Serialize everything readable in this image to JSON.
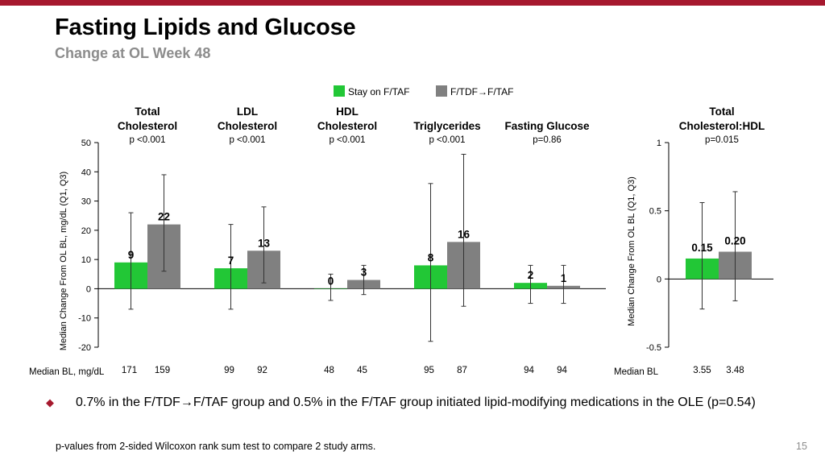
{
  "slide": {
    "title": "Fasting Lipids and Glucose",
    "subtitle": "Change at OL Week 48",
    "bullet": "0.7% in the F/TDF→F/TAF group and 0.5% in the F/TAF group initiated lipid-modifying medications in the OLE (p=0.54)",
    "footnote": "p-values from 2-sided Wilcoxon rank sum test to compare 2 study arms.",
    "page_number": "15"
  },
  "colors": {
    "accent": "#a6192e",
    "stay_on_f_taf": "#22c736",
    "f_tdf_to_f_taf": "#808080"
  },
  "chart_data": [
    {
      "type": "bar",
      "ylabel": "Median Change From OL BL, mg/dL (Q1, Q3)",
      "ylim": [
        -20,
        50
      ],
      "yticks": [
        -20,
        -10,
        0,
        10,
        20,
        30,
        40,
        50
      ],
      "legend": [
        "Stay on F/TAF",
        "F/TDF→F/TAF"
      ],
      "legend_position": "top",
      "baseline_row_label": "Median BL, mg/dL",
      "categories": [
        {
          "name_lines": [
            "Total",
            "Cholesterol"
          ],
          "p_value": "p <0.001"
        },
        {
          "name_lines": [
            "LDL",
            "Cholesterol"
          ],
          "p_value": "p <0.001"
        },
        {
          "name_lines": [
            "HDL",
            "Cholesterol"
          ],
          "p_value": "p <0.001"
        },
        {
          "name_lines": [
            "Triglycerides"
          ],
          "p_value": "p <0.001"
        },
        {
          "name_lines": [
            "Fasting Glucose"
          ],
          "p_value": "p=0.86"
        }
      ],
      "series": [
        {
          "name": "Stay on F/TAF",
          "values": [
            9,
            7,
            0,
            8,
            2
          ],
          "q1": [
            -7,
            -7,
            -4,
            -18,
            -5
          ],
          "q3": [
            26,
            22,
            5,
            36,
            8
          ],
          "median_bl": [
            "171",
            "99",
            "48",
            "95",
            "94"
          ]
        },
        {
          "name": "F/TDF→F/TAF",
          "values": [
            22,
            13,
            3,
            16,
            1
          ],
          "q1": [
            6,
            2,
            -2,
            -6,
            -5
          ],
          "q3": [
            39,
            28,
            8,
            46,
            8
          ],
          "median_bl": [
            "159",
            "92",
            "45",
            "87",
            "94"
          ]
        }
      ]
    },
    {
      "type": "bar",
      "ylabel": "Median Change From OL BL (Q1, Q3)",
      "ylim": [
        -0.5,
        1
      ],
      "yticks": [
        "-0.5",
        "0",
        "0.5",
        "1"
      ],
      "baseline_row_label": "Median BL",
      "categories": [
        {
          "name_lines": [
            "Total",
            "Cholesterol:HDL"
          ],
          "p_value": "p=0.015"
        }
      ],
      "series": [
        {
          "name": "Stay on F/TAF",
          "values": [
            0.15
          ],
          "labels": [
            "0.15"
          ],
          "q1": [
            -0.22
          ],
          "q3": [
            0.56
          ],
          "median_bl": [
            "3.55"
          ]
        },
        {
          "name": "F/TDF→F/TAF",
          "values": [
            0.2
          ],
          "labels": [
            "0.20"
          ],
          "q1": [
            -0.16
          ],
          "q3": [
            0.64
          ],
          "median_bl": [
            "3.48"
          ]
        }
      ]
    }
  ]
}
